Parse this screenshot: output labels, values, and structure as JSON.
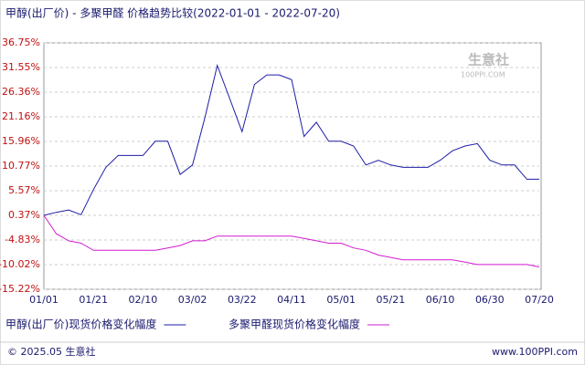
{
  "chart_data": {
    "type": "line",
    "title": "甲醇(出厂价) - 多聚甲醛 价格趋势比较(2022-01-01 - 2022-07-20)",
    "watermark": [
      "生意社",
      "100PPI.COM"
    ],
    "footer_left": "© 2025.05 生意社",
    "footer_right": "www.100PPI.com",
    "categories": [
      "01/01",
      null,
      null,
      null,
      "01/21",
      null,
      null,
      null,
      "02/10",
      null,
      null,
      null,
      "03/02",
      null,
      null,
      null,
      "03/22",
      null,
      null,
      null,
      "04/11",
      null,
      null,
      null,
      "05/01",
      null,
      null,
      null,
      "05/21",
      null,
      null,
      null,
      "06/10",
      null,
      null,
      null,
      "06/30",
      null,
      null,
      null,
      "07/20"
    ],
    "series": [
      {
        "name": "甲醇(出厂价)现货价格变化幅度",
        "color": "#1c1ca8",
        "values": [
          0.37,
          1,
          1.5,
          0.5,
          5.8,
          10.5,
          13,
          13,
          13,
          16,
          16,
          9,
          11,
          21,
          32,
          25,
          18,
          28,
          30,
          30,
          29,
          17,
          20,
          16,
          16,
          15,
          11,
          12,
          11,
          10.5,
          10.5,
          10.5,
          12,
          14,
          15,
          15.5,
          12,
          11,
          11,
          8,
          8
        ]
      },
      {
        "name": "多聚甲醛现货价格变化幅度",
        "color": "#d21cd2",
        "values": [
          0.37,
          -3.5,
          -5,
          -5.5,
          -7,
          -7,
          -7,
          -7,
          -7,
          -7,
          -6.5,
          -6,
          -5,
          -5,
          -4,
          -4,
          -4,
          -4,
          -4,
          -4,
          -4,
          -4.5,
          -5,
          -5.5,
          -5.5,
          -6.5,
          -7,
          -8,
          -8.5,
          -9,
          -9,
          -9,
          -9,
          -9,
          -9.5,
          -10,
          -10,
          -10,
          -10,
          -10,
          -10.5
        ]
      }
    ],
    "ylim": [
      -15.22,
      36.75
    ],
    "yticks": [
      {
        "value": 36.75,
        "label": "36.75%"
      },
      {
        "value": 31.55,
        "label": "31.55%"
      },
      {
        "value": 26.36,
        "label": "26.36%"
      },
      {
        "value": 21.16,
        "label": "21.16%"
      },
      {
        "value": 15.96,
        "label": "15.96%"
      },
      {
        "value": 10.77,
        "label": "10.77%"
      },
      {
        "value": 5.57,
        "label": "5.57%"
      },
      {
        "value": 0.37,
        "label": "0.37%"
      },
      {
        "value": -4.83,
        "label": "-4.83%"
      },
      {
        "value": -10.02,
        "label": "-10.02%"
      },
      {
        "value": -15.22,
        "label": "-15.22%"
      }
    ],
    "grid": true
  }
}
